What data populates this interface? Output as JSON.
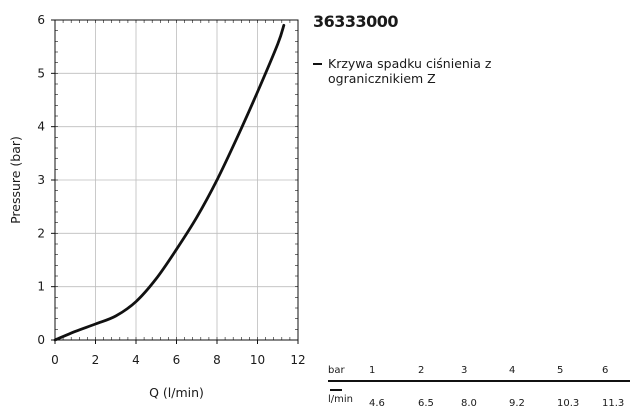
{
  "product_code": "36333000",
  "legend_label": "Krzywa spadku ciśnienia z ogranicznikiem Z",
  "chart_data": {
    "type": "line",
    "xlabel": "Q (l/min)",
    "ylabel": "Pressure (bar)",
    "xlim": [
      0,
      12
    ],
    "ylim": [
      0,
      6
    ],
    "xticks": [
      "0",
      "2",
      "4",
      "6",
      "8",
      "10",
      "12"
    ],
    "yticks": [
      "0",
      "1",
      "2",
      "3",
      "4",
      "5",
      "6"
    ],
    "grid": true,
    "legend_position": "right",
    "series": [
      {
        "name": "Krzywa spadku ciśnienia z ogranicznikiem Z",
        "color": "#111111",
        "x": [
          0,
          1,
          2,
          3,
          4,
          5,
          6,
          7,
          8,
          9,
          10,
          11,
          11.3
        ],
        "y": [
          0,
          0.16,
          0.3,
          0.45,
          0.72,
          1.15,
          1.7,
          2.3,
          3.0,
          3.8,
          4.65,
          5.55,
          5.9
        ]
      }
    ]
  },
  "flow_table": {
    "unit_top": "bar",
    "unit_bottom": "l/min",
    "bar": [
      "1",
      "2",
      "3",
      "4",
      "5",
      "6"
    ],
    "lmin": [
      "4.6",
      "6.5",
      "8.0",
      "9.2",
      "10.3",
      "11.3"
    ]
  }
}
